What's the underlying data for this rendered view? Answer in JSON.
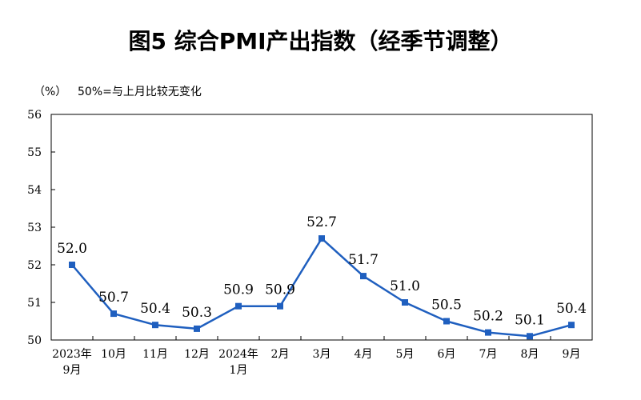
{
  "title": "图5  综合PMI产出指数（经季节调整）",
  "unit_label": "（%）",
  "reference_note": "50%=与上月比较无变化",
  "colors": {
    "series": "#1F5FBF",
    "axis": "#000000"
  },
  "chart_data": {
    "type": "line",
    "title": "图5  综合PMI产出指数（经季节调整）",
    "xlabel": "",
    "ylabel": "（%）",
    "ylim": [
      50,
      56
    ],
    "yticks": [
      50,
      51,
      52,
      53,
      54,
      55,
      56
    ],
    "grid": false,
    "categories": [
      [
        "2023年",
        "9月"
      ],
      [
        "10月"
      ],
      [
        "11月"
      ],
      [
        "12月"
      ],
      [
        "2024年",
        "1月"
      ],
      [
        "2月"
      ],
      [
        "3月"
      ],
      [
        "4月"
      ],
      [
        "5月"
      ],
      [
        "6月"
      ],
      [
        "7月"
      ],
      [
        "8月"
      ],
      [
        "9月"
      ]
    ],
    "series": [
      {
        "values": [
          52.0,
          50.7,
          50.4,
          50.3,
          50.9,
          50.9,
          52.7,
          51.7,
          51.0,
          50.5,
          50.2,
          50.1,
          50.4
        ],
        "labels": [
          "52.0",
          "50.7",
          "50.4",
          "50.3",
          "50.9",
          "50.9",
          "52.7",
          "51.7",
          "51.0",
          "50.5",
          "50.2",
          "50.1",
          "50.4"
        ],
        "marker": "square"
      }
    ]
  }
}
